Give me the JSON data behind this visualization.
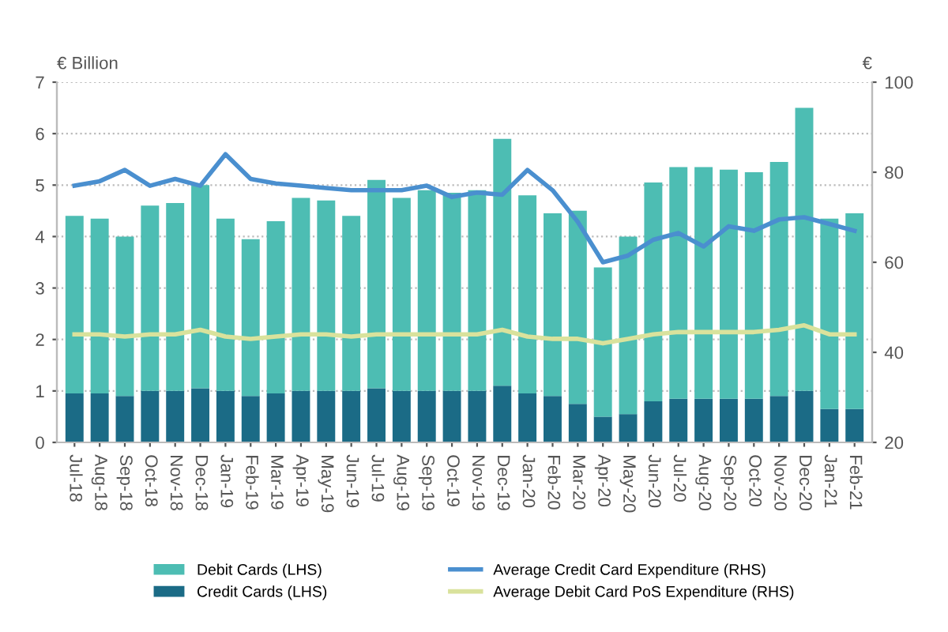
{
  "chart_data": {
    "type": "bar",
    "stacked": true,
    "ylabel": "€ Billion",
    "y2label": "€",
    "categories": [
      "Jul-18",
      "Aug-18",
      "Sep-18",
      "Oct-18",
      "Nov-18",
      "Dec-18",
      "Jan-19",
      "Feb-19",
      "Mar-19",
      "Apr-19",
      "May-19",
      "Jun-19",
      "Jul-19",
      "Aug-19",
      "Sep-19",
      "Oct-19",
      "Nov-19",
      "Dec-19",
      "Jan-20",
      "Feb-20",
      "Mar-20",
      "Apr-20",
      "May-20",
      "Jun-20",
      "Jul-20",
      "Aug-20",
      "Sep-20",
      "Oct-20",
      "Nov-20",
      "Dec-20",
      "Jan-21",
      "Feb-21"
    ],
    "series": [
      {
        "name": "Credit Cards (LHS)",
        "color": "#1b6b86",
        "values": [
          0.95,
          0.95,
          0.9,
          1.0,
          1.0,
          1.05,
          1.0,
          0.9,
          0.95,
          1.0,
          1.0,
          1.0,
          1.05,
          1.0,
          1.0,
          1.0,
          1.0,
          1.1,
          0.95,
          0.9,
          0.75,
          0.5,
          0.55,
          0.8,
          0.85,
          0.85,
          0.85,
          0.85,
          0.9,
          1.0,
          0.65,
          0.65
        ]
      },
      {
        "name": "Debit Cards (LHS)",
        "color": "#4dbdb3",
        "values": [
          3.45,
          3.4,
          3.1,
          3.6,
          3.65,
          3.95,
          3.35,
          3.05,
          3.35,
          3.75,
          3.7,
          3.4,
          4.05,
          3.75,
          3.9,
          3.85,
          3.9,
          4.8,
          3.85,
          3.55,
          3.75,
          2.9,
          3.45,
          4.25,
          4.5,
          4.5,
          4.45,
          4.4,
          4.55,
          5.5,
          3.7,
          3.8
        ]
      },
      {
        "name": "Average Credit Card Expenditure (RHS)",
        "type": "line",
        "axis": "y2",
        "color": "#4a8fcf",
        "values": [
          77,
          78,
          80.5,
          77,
          78.5,
          77,
          84,
          78.5,
          77.5,
          77,
          76.5,
          76,
          76,
          76,
          77,
          74.5,
          75.5,
          75,
          80.5,
          76,
          69,
          60,
          61.5,
          65,
          66.5,
          63.5,
          68,
          67,
          69.5,
          70,
          68.5,
          67
        ]
      },
      {
        "name": "Average Debit Card PoS Expenditure (RHS)",
        "type": "line",
        "axis": "y2",
        "color": "#d9e29c",
        "values": [
          44,
          44,
          43.5,
          44,
          44,
          45,
          43.5,
          43,
          43.5,
          44,
          44,
          43.5,
          44,
          44,
          44,
          44,
          44,
          45,
          43.5,
          43,
          43,
          42,
          43,
          44,
          44.5,
          44.5,
          44.5,
          44.5,
          45,
          46,
          44,
          44
        ]
      }
    ],
    "ylim": [
      0,
      7
    ],
    "yticks": [
      0,
      1,
      2,
      3,
      4,
      5,
      6,
      7
    ],
    "y2lim": [
      20,
      100
    ],
    "y2ticks": [
      20,
      40,
      60,
      80,
      100
    ],
    "grid": "y",
    "legend": "bottom"
  }
}
